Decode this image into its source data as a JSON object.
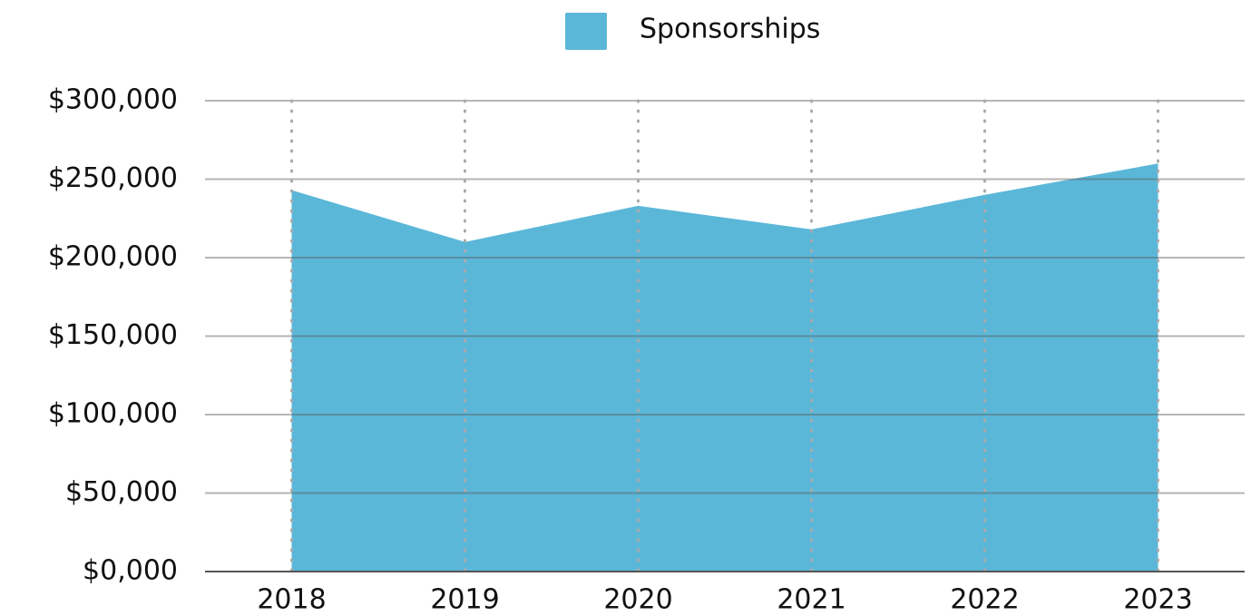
{
  "chart_data": {
    "type": "area",
    "categories": [
      "2018",
      "2019",
      "2020",
      "2021",
      "2022",
      "2023"
    ],
    "series": [
      {
        "name": "Sponsorships",
        "color": "#5bb7d8",
        "values": [
          243000,
          210000,
          233000,
          218000,
          240000,
          260000
        ]
      }
    ],
    "ylim": [
      0,
      300000
    ],
    "yticks": [
      {
        "value": 0,
        "label": "$0,000"
      },
      {
        "value": 50000,
        "label": "$50,000"
      },
      {
        "value": 100000,
        "label": "$100,000"
      },
      {
        "value": 150000,
        "label": "$150,000"
      },
      {
        "value": 200000,
        "label": "$200,000"
      },
      {
        "value": 250000,
        "label": "$250,000"
      },
      {
        "value": 300000,
        "label": "$300,000"
      }
    ],
    "grid": true,
    "legend": "top"
  }
}
